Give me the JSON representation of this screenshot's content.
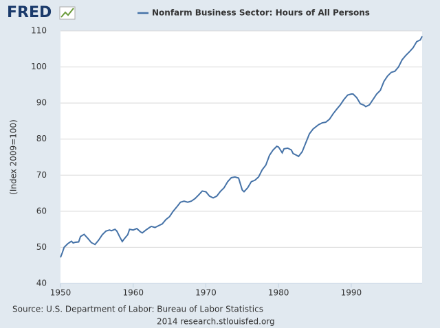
{
  "logo": "FRED",
  "chart_data": {
    "type": "line",
    "title": "Nonfarm Business Sector: Hours of All Persons",
    "y_label": "(Index 2009=100)",
    "source": "Source: U.S. Department of Labor: Bureau of Labor Statistics",
    "footer": "2014 research.stlouisfed.org",
    "xlim": [
      1950,
      1999.75
    ],
    "xticks": [
      1950,
      1960,
      1970,
      1980,
      1990
    ],
    "ylim": [
      40,
      110
    ],
    "yticks": [
      40,
      50,
      60,
      70,
      80,
      90,
      100,
      110
    ],
    "grid": true,
    "series": [
      {
        "name": "Nonfarm Business Sector: Hours of All Persons",
        "color": "#4572a7",
        "x": [
          1950,
          1950.25,
          1950.5,
          1951,
          1951.5,
          1951.75,
          1952,
          1952.5,
          1952.75,
          1953.25,
          1953.75,
          1954.25,
          1954.75,
          1955.25,
          1955.75,
          1956.25,
          1956.75,
          1957,
          1957.5,
          1957.75,
          1958.25,
          1958.5,
          1958.75,
          1959.25,
          1959.5,
          1960,
          1960.5,
          1961,
          1961.25,
          1961.75,
          1962.25,
          1962.5,
          1963,
          1963.5,
          1964,
          1964.5,
          1965,
          1965.5,
          1966,
          1966.5,
          1967,
          1967.5,
          1968,
          1968.5,
          1969,
          1969.5,
          1970,
          1970.5,
          1971,
          1971.5,
          1972,
          1972.5,
          1973,
          1973.5,
          1974,
          1974.5,
          1975,
          1975.25,
          1975.75,
          1976.25,
          1976.75,
          1977.25,
          1977.75,
          1978.25,
          1978.75,
          1979.25,
          1979.75,
          1980,
          1980.5,
          1980.75,
          1981.25,
          1981.75,
          1982,
          1982.5,
          1982.75,
          1983.25,
          1983.75,
          1984.25,
          1984.75,
          1985.5,
          1986,
          1986.5,
          1987,
          1987.5,
          1988,
          1988.5,
          1989,
          1989.5,
          1990,
          1990.25,
          1990.75,
          1991.25,
          1991.75,
          1992,
          1992.5,
          1993,
          1993.5,
          1994,
          1994.5,
          1995,
          1995.5,
          1996,
          1996.5,
          1997,
          1997.5,
          1998,
          1998.5,
          1999,
          1999.5,
          1999.75
        ],
        "values": [
          47.2,
          48.5,
          50,
          51,
          51.7,
          51.2,
          51.4,
          51.5,
          53,
          53.6,
          52.5,
          51.3,
          50.8,
          52,
          53.5,
          54.5,
          54.8,
          54.6,
          55,
          54.5,
          52.5,
          51.6,
          52.3,
          53.5,
          55,
          54.8,
          55.2,
          54.3,
          54,
          54.8,
          55.5,
          55.8,
          55.5,
          56,
          56.5,
          57.7,
          58.5,
          60,
          61.2,
          62.5,
          62.8,
          62.5,
          62.8,
          63.5,
          64.5,
          65.6,
          65.4,
          64.2,
          63.7,
          64.2,
          65.5,
          66.5,
          68.2,
          69.3,
          69.5,
          69.2,
          65.9,
          65.4,
          66.5,
          68.2,
          68.6,
          69.5,
          71.5,
          72.8,
          75.5,
          77,
          78,
          77.8,
          76.2,
          77.3,
          77.5,
          77,
          76,
          75.5,
          75.2,
          76.5,
          79,
          81.5,
          82.8,
          84,
          84.5,
          84.7,
          85.5,
          87,
          88.3,
          89.5,
          91,
          92.2,
          92.5,
          92.5,
          91.5,
          89.8,
          89.4,
          89,
          89.5,
          91,
          92.5,
          93.5,
          96,
          97.5,
          98.5,
          98.8,
          100,
          102,
          103.2,
          104.2,
          105.3,
          107,
          107.5,
          108.5
        ]
      }
    ]
  }
}
